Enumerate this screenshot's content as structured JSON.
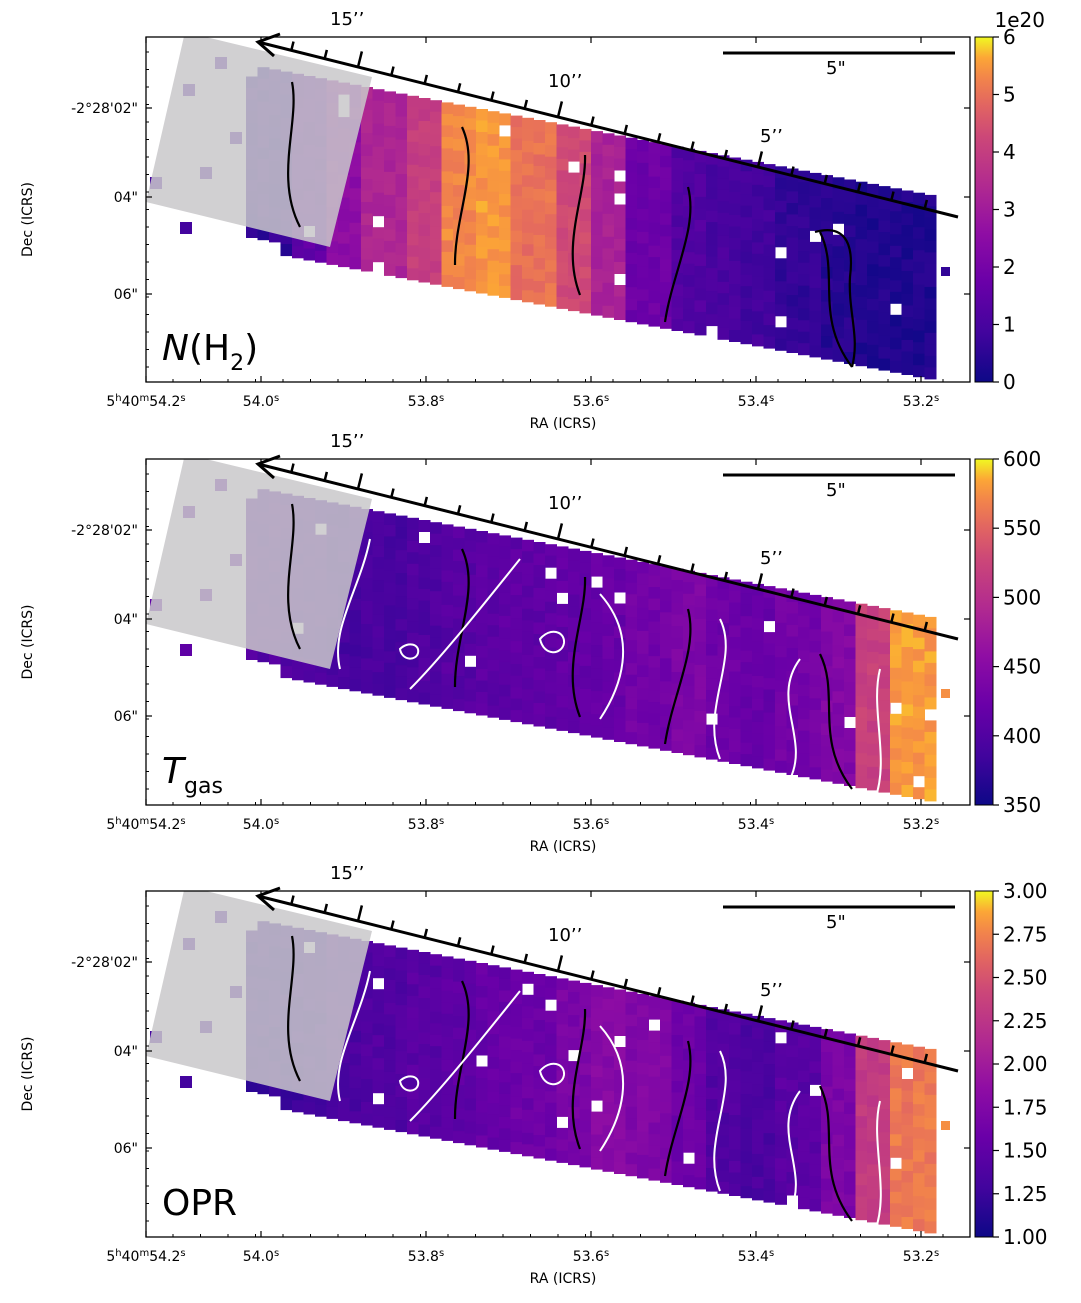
{
  "chart_data": [
    {
      "type": "heatmap",
      "quantity": {
        "main": "N",
        "open": "(H",
        "sub": "2",
        "close": ")"
      },
      "xlabel": "RA (ICRS)",
      "ylabel": "Dec (ICRS)",
      "x_ticks": [
        {
          "h": "5",
          "hs": "h",
          "m": "40",
          "ms": "m",
          "s": "54.2",
          "ss": "s"
        },
        {
          "s": "54.0",
          "ss": "s"
        },
        {
          "s": "53.8",
          "ss": "s"
        },
        {
          "s": "53.6",
          "ss": "s"
        },
        {
          "s": "53.4",
          "ss": "s"
        },
        {
          "s": "53.2",
          "ss": "s"
        }
      ],
      "y_ticks": [
        "-2°28'02\"",
        "04\"",
        "06\""
      ],
      "colorbar": {
        "ticks": [
          "0",
          "1",
          "2",
          "3",
          "4",
          "5",
          "6"
        ],
        "offset": "1e20",
        "range": [
          0,
          6
        ],
        "colormap": "plasma"
      },
      "arc_labels": [
        "15’’",
        "10’’",
        "5’’"
      ],
      "scale_bar": "5\"",
      "profile_along_cut": [
        0.6,
        1.5,
        2.5,
        3.3,
        4.0,
        5.3,
        5.5,
        5.0,
        4.3,
        3.2,
        1.8,
        1.2,
        1.0,
        0.9,
        0.6,
        0.4,
        0.3,
        0.3
      ]
    },
    {
      "type": "heatmap",
      "quantity": {
        "main": "T",
        "sub": "gas"
      },
      "xlabel": "RA (ICRS)",
      "ylabel": "Dec (ICRS)",
      "x_ticks": [
        {
          "h": "5",
          "hs": "h",
          "m": "40",
          "ms": "m",
          "s": "54.2",
          "ss": "s"
        },
        {
          "s": "54.0",
          "ss": "s"
        },
        {
          "s": "53.8",
          "ss": "s"
        },
        {
          "s": "53.6",
          "ss": "s"
        },
        {
          "s": "53.4",
          "ss": "s"
        },
        {
          "s": "53.2",
          "ss": "s"
        }
      ],
      "y_ticks": [
        "-2°28'02\"",
        "04\"",
        "06\""
      ],
      "colorbar": {
        "ticks": [
          "350",
          "400",
          "450",
          "500",
          "550",
          "600"
        ],
        "offset": "",
        "range": [
          350,
          600
        ],
        "colormap": "plasma"
      },
      "arc_labels": [
        "15’’",
        "10’’",
        "5’’"
      ],
      "scale_bar": "5\"",
      "profile_along_cut": [
        400,
        395,
        390,
        392,
        398,
        405,
        410,
        412,
        415,
        420,
        430,
        440,
        425,
        420,
        430,
        445,
        520,
        580
      ]
    },
    {
      "type": "heatmap",
      "quantity": {
        "main": "OPR"
      },
      "xlabel": "RA (ICRS)",
      "ylabel": "Dec (ICRS)",
      "x_ticks": [
        {
          "h": "5",
          "hs": "h",
          "m": "40",
          "ms": "m",
          "s": "54.2",
          "ss": "s"
        },
        {
          "s": "54.0",
          "ss": "s"
        },
        {
          "s": "53.8",
          "ss": "s"
        },
        {
          "s": "53.6",
          "ss": "s"
        },
        {
          "s": "53.4",
          "ss": "s"
        },
        {
          "s": "53.2",
          "ss": "s"
        }
      ],
      "y_ticks": [
        "-2°28'02\"",
        "04\"",
        "06\""
      ],
      "colorbar": {
        "ticks": [
          "1.00",
          "1.25",
          "1.50",
          "1.75",
          "2.00",
          "2.25",
          "2.50",
          "2.75",
          "3.00"
        ],
        "offset": "",
        "range": [
          1.0,
          3.0
        ],
        "colormap": "plasma"
      },
      "arc_labels": [
        "15’’",
        "10’’",
        "5’’"
      ],
      "scale_bar": "5\"",
      "profile_along_cut": [
        1.2,
        1.25,
        1.35,
        1.4,
        1.45,
        1.5,
        1.55,
        1.6,
        1.7,
        1.8,
        1.75,
        1.6,
        1.4,
        1.35,
        1.45,
        1.7,
        2.3,
        2.7
      ]
    }
  ],
  "colors": {
    "mask": "#c9c8ca",
    "contour_black": "#000000",
    "contour_white": "#ffffff"
  }
}
